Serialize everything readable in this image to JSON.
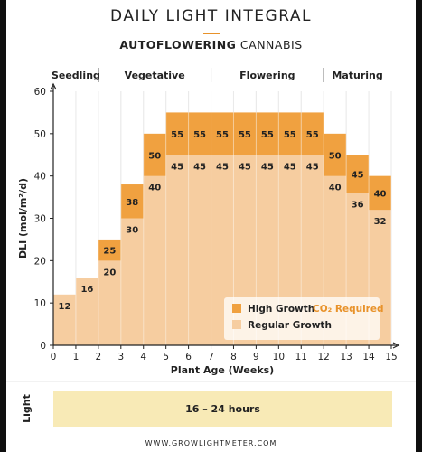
{
  "header": {
    "title": "DAILY LIGHT INTEGRAL",
    "subtitle_bold": "AUTOFLOWERING",
    "subtitle_rest": " CANNABIS"
  },
  "stages": [
    "Seedling",
    "Vegetative",
    "Flowering",
    "Maturing"
  ],
  "footer": "WWW.GROWLIGHTMETER.COM",
  "light": {
    "label": "Light",
    "value": "16 – 24 hours"
  },
  "colors": {
    "high": "#f0a140",
    "regular": "#f6cda0",
    "light_band": "#f8eab6",
    "co2": "#e8922a"
  },
  "chart_data": {
    "type": "bar",
    "xlabel": "Plant Age (Weeks)",
    "ylabel": "DLI (mol/m²/d)",
    "xlim": [
      0,
      15
    ],
    "ylim": [
      0,
      60
    ],
    "x_ticks": [
      "0",
      "1",
      "2",
      "3",
      "4",
      "5",
      "6",
      "7",
      "8",
      "9",
      "10",
      "11",
      "12",
      "13",
      "14",
      "15"
    ],
    "y_ticks": [
      "0",
      "10",
      "20",
      "30",
      "40",
      "50",
      "60"
    ],
    "bins": [
      [
        0,
        1
      ],
      [
        1,
        2
      ],
      [
        2,
        3
      ],
      [
        3,
        4
      ],
      [
        4,
        5
      ],
      [
        5,
        6
      ],
      [
        6,
        7
      ],
      [
        7,
        8
      ],
      [
        8,
        9
      ],
      [
        9,
        10
      ],
      [
        10,
        11
      ],
      [
        11,
        12
      ],
      [
        12,
        13
      ],
      [
        13,
        14
      ],
      [
        14,
        15
      ]
    ],
    "series": [
      {
        "name": "Regular Growth",
        "values": [
          12,
          16,
          20,
          30,
          40,
          45,
          45,
          45,
          45,
          45,
          45,
          45,
          40,
          36,
          32
        ]
      },
      {
        "name": "High Growth",
        "values": [
          null,
          null,
          25,
          38,
          50,
          55,
          55,
          55,
          55,
          55,
          55,
          55,
          50,
          45,
          40
        ]
      }
    ],
    "legend": {
      "high_label": "High Growth",
      "co2_label": "CO₂ Required",
      "regular_label": "Regular Growth",
      "position": "bottom-right"
    },
    "stage_dividers": [
      2,
      7,
      12
    ]
  }
}
